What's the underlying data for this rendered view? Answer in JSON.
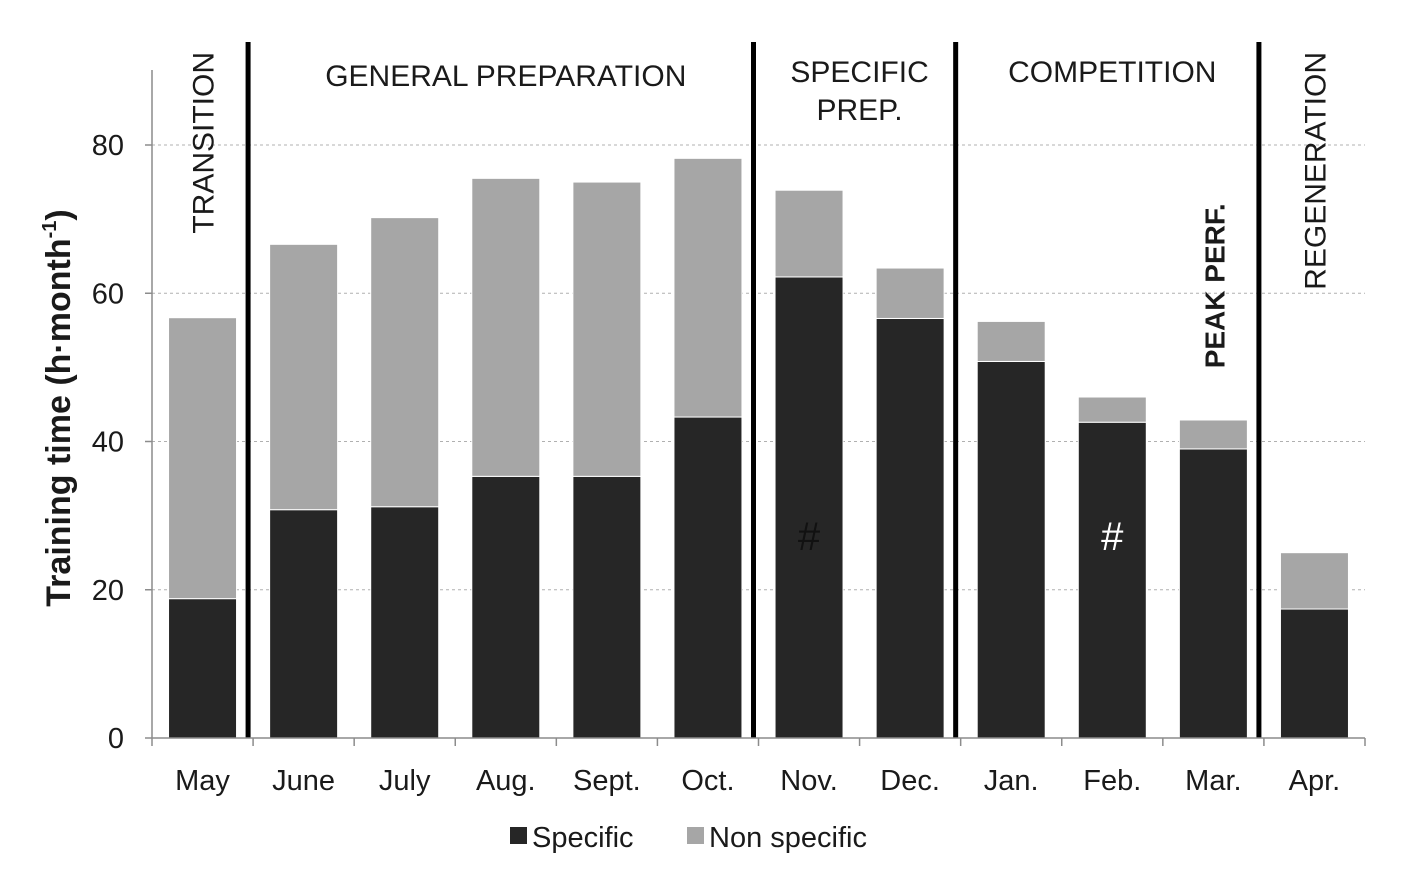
{
  "chart_data": {
    "type": "bar",
    "stacked": true,
    "title": "",
    "xlabel": "",
    "ylabel": "Training time (h·month",
    "ylabel_sup": "-1",
    "ylabel_close": ")",
    "ylim": [
      0,
      90
    ],
    "yticks": [
      0,
      20,
      40,
      60,
      80
    ],
    "grid": "horizontal dashed",
    "legend_position": "bottom-center",
    "categories": [
      "May",
      "June",
      "July",
      "Aug.",
      "Sept.",
      "Oct.",
      "Nov.",
      "Dec.",
      "Jan.",
      "Feb.",
      "Mar.",
      "Apr."
    ],
    "series": [
      {
        "name": "Specific",
        "color": "#262626",
        "values": [
          18.8,
          30.8,
          31.2,
          35.3,
          35.3,
          43.3,
          62.2,
          56.6,
          50.8,
          42.6,
          39.0,
          17.4
        ]
      },
      {
        "name": "Non specific",
        "color": "#a6a6a6",
        "values": [
          37.9,
          35.8,
          39.0,
          40.2,
          39.7,
          34.9,
          11.7,
          6.8,
          5.4,
          3.4,
          3.9,
          7.6
        ]
      }
    ],
    "phases": [
      {
        "label": "TRANSITION",
        "start": 0,
        "end": 0,
        "orientation": "vertical",
        "bold": false
      },
      {
        "label": "GENERAL PREPARATION",
        "start": 1,
        "end": 5,
        "orientation": "horizontal",
        "bold": false
      },
      {
        "label": "SPECIFIC",
        "label_line2": "PREP.",
        "start": 6,
        "end": 7,
        "orientation": "horizontal",
        "bold": false
      },
      {
        "label": "COMPETITION",
        "start": 8,
        "end": 10,
        "orientation": "horizontal",
        "bold": false
      },
      {
        "label": "REGENERATION",
        "start": 11,
        "end": 11,
        "orientation": "vertical",
        "bold": false
      }
    ],
    "phase_dividers_after": [
      0,
      5,
      7,
      10
    ],
    "annotations": [
      {
        "text": "#",
        "category": "Nov.",
        "y": 27,
        "color": "#111111"
      },
      {
        "text": "#",
        "category": "Feb.",
        "y": 27,
        "color": "#ffffff"
      },
      {
        "text": "PEAK PERF.",
        "category": "Mar.",
        "y": 55,
        "orientation": "vertical",
        "bold": true
      }
    ]
  }
}
